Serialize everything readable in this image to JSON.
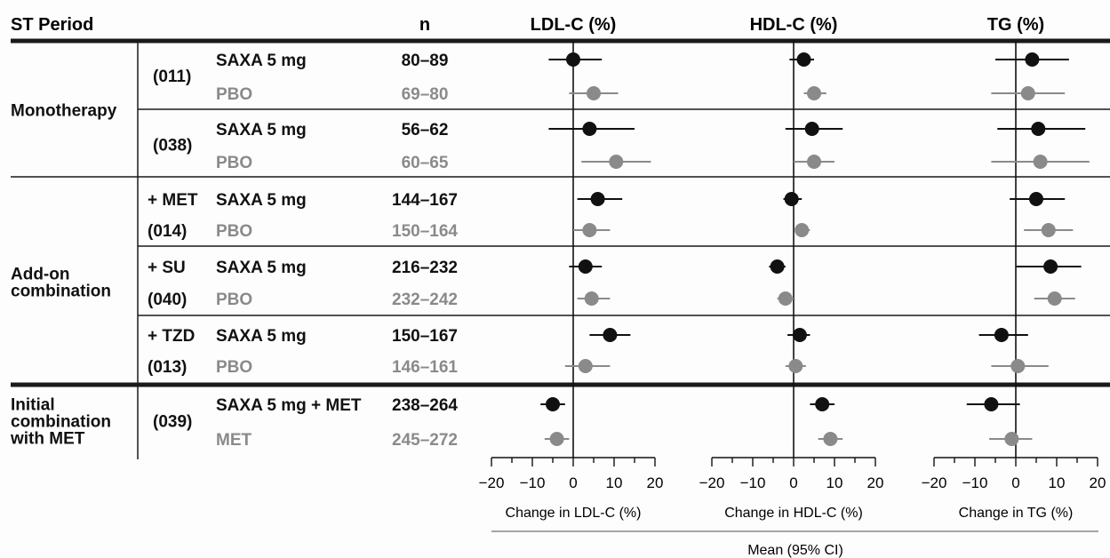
{
  "header": {
    "period": "ST Period",
    "n": "n",
    "ldl": "LDL-C (%)",
    "hdl": "HDL-C (%)",
    "tg": "TG (%)"
  },
  "groups": [
    {
      "label_lines": [
        "Monotherapy"
      ],
      "rows": [
        0,
        1,
        2,
        3
      ]
    },
    {
      "label_lines": [
        "Add-on",
        "combination"
      ],
      "rows": [
        4,
        5,
        6,
        7,
        8,
        9
      ]
    },
    {
      "label_lines": [
        "Initial",
        "combination",
        "with MET"
      ],
      "rows": [
        10,
        11
      ]
    }
  ],
  "studies": [
    {
      "lines": [
        "(011)"
      ],
      "rows": [
        0,
        1
      ]
    },
    {
      "lines": [
        "(038)"
      ],
      "rows": [
        2,
        3
      ]
    },
    {
      "lines": [
        "+ MET",
        "(014)"
      ],
      "rows": [
        4,
        5
      ]
    },
    {
      "lines": [
        "+ SU",
        "(040)"
      ],
      "rows": [
        6,
        7
      ]
    },
    {
      "lines": [
        "+ TZD",
        "(013)"
      ],
      "rows": [
        8,
        9
      ]
    },
    {
      "lines": [
        "(039)"
      ],
      "rows": [
        10,
        11
      ]
    }
  ],
  "colors": {
    "saxa": "#111111",
    "pbo": "#8a8a8a"
  },
  "chart_data": {
    "type": "forest",
    "x_ticks": [
      "−20",
      "−10",
      "0",
      "10",
      "20"
    ],
    "xlim": [
      -20,
      20
    ],
    "xlabels": [
      "Change in LDL-C (%)",
      "Change in HDL-C (%)",
      "Change in TG (%)"
    ],
    "footer_label": "Mean (95% CI)",
    "panels": [
      "LDL-C",
      "HDL-C",
      "TG"
    ],
    "rows": [
      {
        "treatment": "SAXA 5 mg",
        "n": "80–89",
        "arm": "saxa",
        "ldl": [
          0,
          -6,
          7
        ],
        "hdl": [
          2.5,
          -1,
          5
        ],
        "tg": [
          4,
          -5,
          13
        ]
      },
      {
        "treatment": "PBO",
        "n": "69–80",
        "arm": "pbo",
        "ldl": [
          5,
          -1,
          11
        ],
        "hdl": [
          5,
          2.5,
          8
        ],
        "tg": [
          3,
          -6,
          12
        ]
      },
      {
        "treatment": "SAXA 5 mg",
        "n": "56–62",
        "arm": "saxa",
        "ldl": [
          4,
          -6,
          15
        ],
        "hdl": [
          4.5,
          -2,
          12
        ],
        "tg": [
          5.5,
          -4.5,
          17
        ]
      },
      {
        "treatment": "PBO",
        "n": "60–65",
        "arm": "pbo",
        "ldl": [
          10.5,
          2,
          19
        ],
        "hdl": [
          5,
          0,
          10
        ],
        "tg": [
          6,
          -6,
          18
        ]
      },
      {
        "treatment": "SAXA 5 mg",
        "n": "144–167",
        "arm": "saxa",
        "ldl": [
          6,
          1,
          12
        ],
        "hdl": [
          -0.5,
          -2.5,
          2
        ],
        "tg": [
          5,
          -1.5,
          12
        ]
      },
      {
        "treatment": "PBO",
        "n": "150–164",
        "arm": "pbo",
        "ldl": [
          4,
          0,
          9
        ],
        "hdl": [
          2,
          0.5,
          4
        ],
        "tg": [
          8,
          2,
          14
        ]
      },
      {
        "treatment": "SAXA 5 mg",
        "n": "216–232",
        "arm": "saxa",
        "ldl": [
          3,
          -1,
          7
        ],
        "hdl": [
          -4,
          -6,
          -2
        ],
        "tg": [
          8.5,
          0,
          16
        ]
      },
      {
        "treatment": "PBO",
        "n": "232–242",
        "arm": "pbo",
        "ldl": [
          4.5,
          1,
          9
        ],
        "hdl": [
          -2,
          -4,
          0
        ],
        "tg": [
          9.5,
          4.5,
          14.5
        ]
      },
      {
        "treatment": "SAXA 5 mg",
        "n": "150–167",
        "arm": "saxa",
        "ldl": [
          9,
          4,
          14
        ],
        "hdl": [
          1.5,
          -1.5,
          4
        ],
        "tg": [
          -3.5,
          -9,
          3
        ]
      },
      {
        "treatment": "PBO",
        "n": "146–161",
        "arm": "pbo",
        "ldl": [
          3,
          -2,
          9
        ],
        "hdl": [
          0.5,
          -2,
          3
        ],
        "tg": [
          0.5,
          -6,
          8
        ]
      },
      {
        "treatment": "SAXA 5 mg + MET",
        "n": "238–264",
        "arm": "saxa",
        "ldl": [
          -5,
          -8,
          -2
        ],
        "hdl": [
          7,
          4,
          10
        ],
        "tg": [
          -6,
          -12,
          1
        ]
      },
      {
        "treatment": "MET",
        "n": "245–272",
        "arm": "pbo",
        "ldl": [
          -4,
          -7,
          -1
        ],
        "hdl": [
          9,
          6,
          12
        ],
        "tg": [
          -1,
          -6.5,
          4
        ]
      }
    ]
  }
}
